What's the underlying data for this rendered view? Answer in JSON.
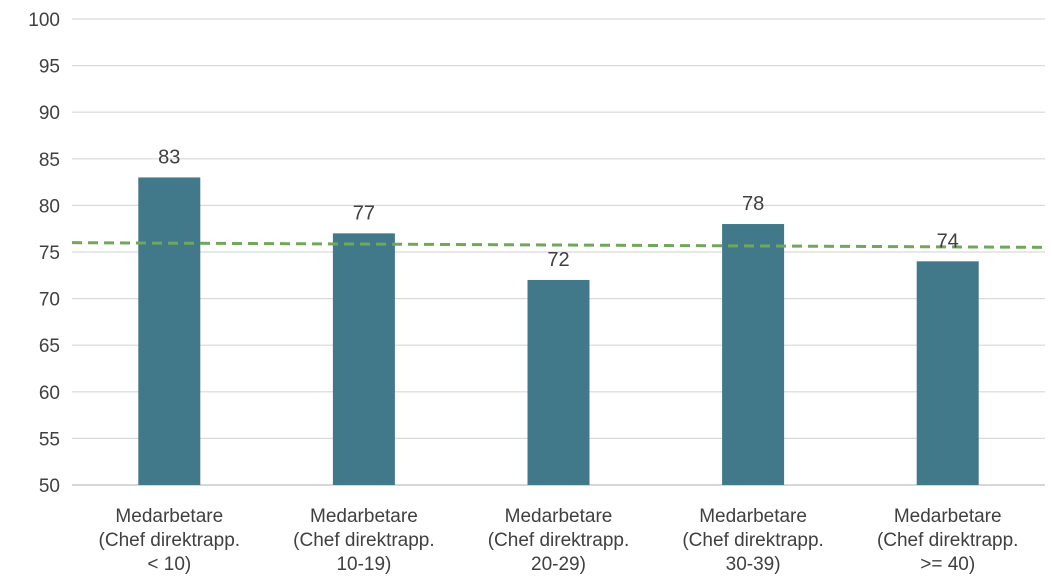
{
  "chart_data": {
    "type": "bar",
    "title": "",
    "xlabel": "",
    "ylabel": "",
    "categories": [
      [
        "Medarbetare",
        "(Chef direktrapp.",
        "< 10)"
      ],
      [
        "Medarbetare",
        "(Chef direktrapp.",
        "10-19)"
      ],
      [
        "Medarbetare",
        "(Chef direktrapp.",
        "20-29)"
      ],
      [
        "Medarbetare",
        "(Chef direktrapp.",
        "30-39)"
      ],
      [
        "Medarbetare",
        "(Chef direktrapp.",
        ">= 40)"
      ]
    ],
    "values": [
      83,
      77,
      72,
      78,
      74
    ],
    "data_labels": [
      "83",
      "77",
      "72",
      "78",
      "74"
    ],
    "ylim": [
      50,
      100
    ],
    "yticks": [
      50,
      55,
      60,
      65,
      70,
      75,
      80,
      85,
      90,
      95,
      100
    ],
    "ytick_labels": [
      "50",
      "55",
      "60",
      "65",
      "70",
      "75",
      "80",
      "85",
      "90",
      "95",
      "100"
    ],
    "grid": true,
    "legend": "none",
    "reference_line": {
      "style": "dashed",
      "start_value": 76.0,
      "end_value": 75.5
    },
    "colors": {
      "bar": "#41788a",
      "reference_line": "#70a85a"
    }
  }
}
